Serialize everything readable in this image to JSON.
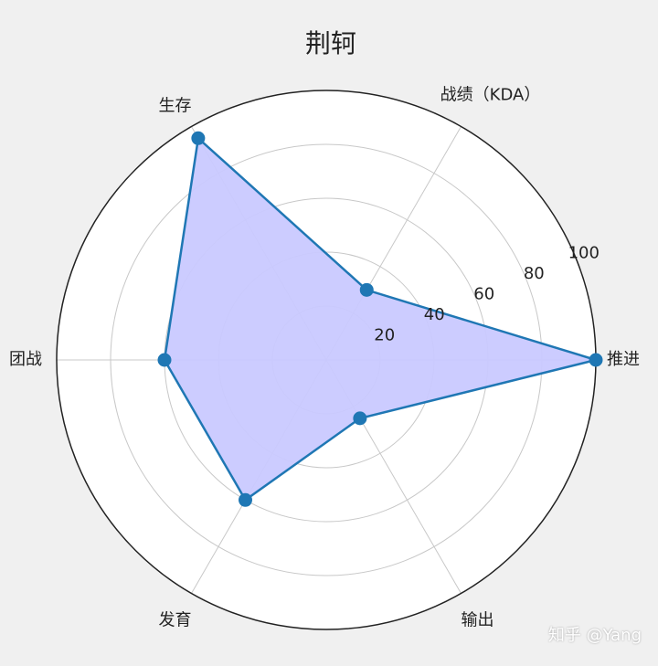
{
  "page": {
    "title": "荆轲",
    "watermark": "知乎 @Yang"
  },
  "colors": {
    "background": "#f0f0f0",
    "plot_background": "#ffffff",
    "series_line": "#1f77b4",
    "series_fill": "#c9c9ff",
    "grid": "#c8c8c8",
    "outer_circle": "#222222"
  },
  "chart_data": {
    "type": "radar",
    "title": "荆轲",
    "categories": [
      "推进",
      "战绩（KDA）",
      "生存",
      "团战",
      "发育",
      "输出"
    ],
    "series": [
      {
        "values": [
          100,
          30,
          95,
          60,
          60,
          25
        ],
        "marker": "circle"
      }
    ],
    "rlim": [
      0,
      100
    ],
    "radial_ticks": [
      20,
      40,
      60,
      80,
      100
    ],
    "grid": true
  }
}
